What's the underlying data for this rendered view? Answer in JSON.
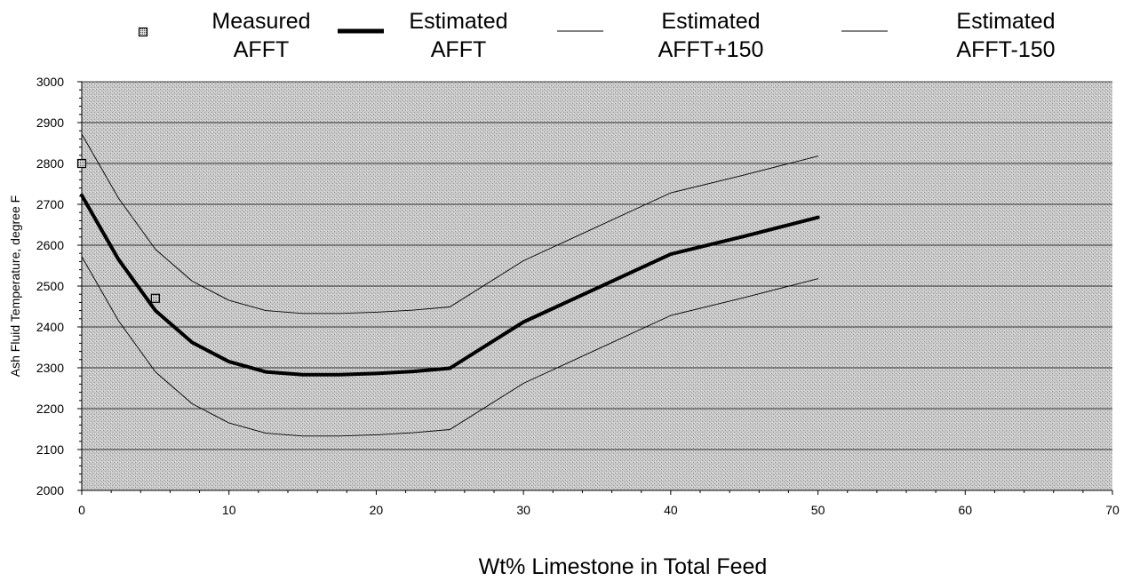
{
  "chart_data": {
    "type": "line",
    "xlabel": "Wt% Limestone in Total Feed",
    "ylabel": "Ash Fluid Temperature, degree F",
    "xlim": [
      0,
      70
    ],
    "ylim": [
      2000,
      3000
    ],
    "x_ticks": [
      "0",
      "10",
      "20",
      "30",
      "40",
      "50",
      "60",
      "70"
    ],
    "y_ticks": [
      "2000",
      "2100",
      "2200",
      "2300",
      "2400",
      "2500",
      "2600",
      "2700",
      "2800",
      "2900",
      "3000"
    ],
    "grid": "horizontal",
    "legend_position": "top",
    "background": "stippled-gray",
    "series": [
      {
        "name": "Measured AFFT",
        "style": "markers",
        "color": "#000000",
        "points": [
          [
            0,
            2800
          ],
          [
            5,
            2470
          ]
        ]
      },
      {
        "name": "Estimated AFFT",
        "style": "thick-line",
        "color": "#000000",
        "points": [
          [
            0,
            2722
          ],
          [
            2.5,
            2565
          ],
          [
            5,
            2440
          ],
          [
            7.5,
            2362
          ],
          [
            10,
            2315
          ],
          [
            12.5,
            2290
          ],
          [
            15,
            2283
          ],
          [
            17.5,
            2283
          ],
          [
            20,
            2286
          ],
          [
            22.5,
            2291
          ],
          [
            25,
            2299
          ],
          [
            30,
            2412
          ],
          [
            35,
            2495
          ],
          [
            40,
            2578
          ],
          [
            45,
            2622
          ],
          [
            50,
            2668
          ]
        ]
      },
      {
        "name": "Estimated AFFT+150",
        "style": "thin-line",
        "color": "#000000",
        "points": [
          [
            0,
            2872
          ],
          [
            2.5,
            2715
          ],
          [
            5,
            2590
          ],
          [
            7.5,
            2512
          ],
          [
            10,
            2465
          ],
          [
            12.5,
            2440
          ],
          [
            15,
            2433
          ],
          [
            17.5,
            2433
          ],
          [
            20,
            2436
          ],
          [
            22.5,
            2441
          ],
          [
            25,
            2449
          ],
          [
            30,
            2562
          ],
          [
            35,
            2645
          ],
          [
            40,
            2728
          ],
          [
            45,
            2772
          ],
          [
            50,
            2818
          ]
        ]
      },
      {
        "name": "Estimated AFFT-150",
        "style": "thin-line",
        "color": "#000000",
        "points": [
          [
            0,
            2572
          ],
          [
            2.5,
            2415
          ],
          [
            5,
            2290
          ],
          [
            7.5,
            2212
          ],
          [
            10,
            2165
          ],
          [
            12.5,
            2140
          ],
          [
            15,
            2133
          ],
          [
            17.5,
            2133
          ],
          [
            20,
            2136
          ],
          [
            22.5,
            2141
          ],
          [
            25,
            2149
          ],
          [
            30,
            2262
          ],
          [
            35,
            2345
          ],
          [
            40,
            2428
          ],
          [
            45,
            2472
          ],
          [
            50,
            2518
          ]
        ]
      }
    ],
    "legend": [
      {
        "line1": "Measured",
        "line2": "AFFT",
        "style": "markers"
      },
      {
        "line1": "Estimated",
        "line2": "AFFT",
        "style": "thick-line"
      },
      {
        "line1": "Estimated",
        "line2": "AFFT+150",
        "style": "thin-line"
      },
      {
        "line1": "Estimated",
        "line2": "AFFT-150",
        "style": "thin-line"
      }
    ]
  }
}
